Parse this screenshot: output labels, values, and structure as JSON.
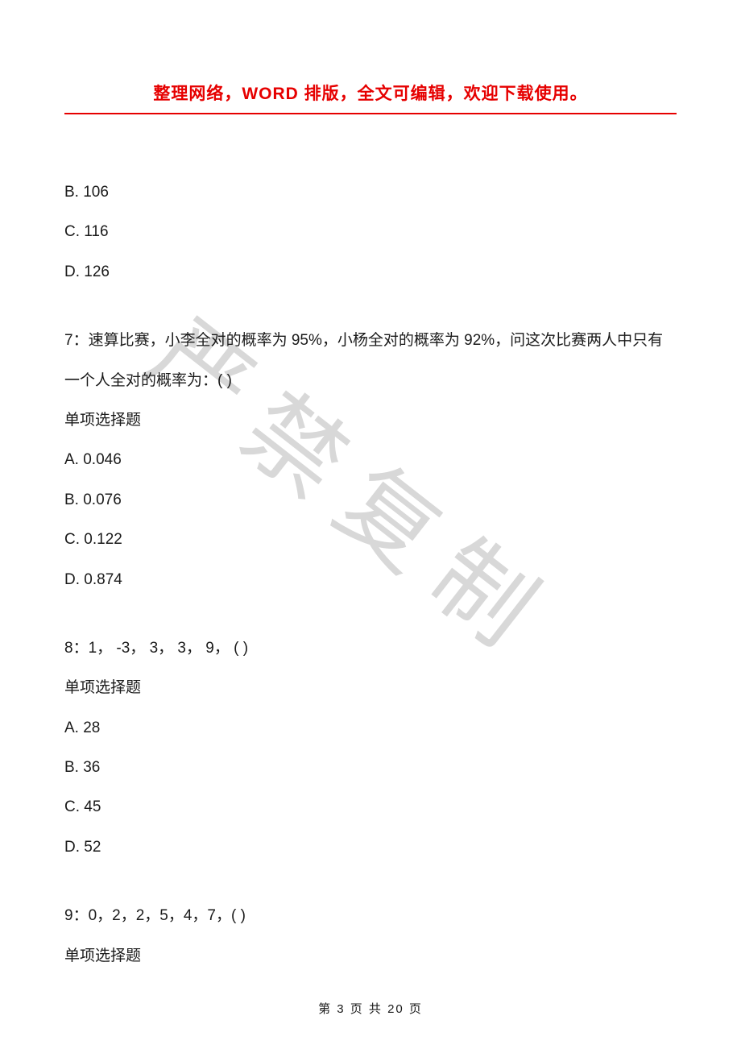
{
  "header": {
    "text": "整理网络，WORD 排版，全文可编辑，欢迎下载使用。",
    "color": "#e60000",
    "fontsize": 21,
    "underline_color": "#e60000"
  },
  "watermark": {
    "text": "严禁复制",
    "color": "#d8d8d8",
    "fontsize": 120,
    "rotation_deg": 38
  },
  "body": {
    "text_color": "#1a1a1a",
    "fontsize": 19,
    "background_color": "#ffffff",
    "partial_options": {
      "b": "B. 106",
      "c": "C. 116",
      "d": "D. 126"
    },
    "questions": [
      {
        "number": "7",
        "stem": "7：速算比赛，小李全对的概率为 95%，小杨全对的概率为 92%，问这次比赛两人中只有一个人全对的概率为：( )",
        "type_label": "单项选择题",
        "options": {
          "a": "A. 0.046",
          "b": "B. 0.076",
          "c": "C. 0.122",
          "d": "D. 0.874"
        }
      },
      {
        "number": "8",
        "stem": "8：1，  -3，  3，  3，  9，  (    )",
        "type_label": "单项选择题",
        "options": {
          "a": "A. 28",
          "b": "B. 36",
          "c": "C. 45",
          "d": "D. 52"
        }
      },
      {
        "number": "9",
        "stem": "9：0，2，2，5，4，7，(    )",
        "type_label": "单项选择题",
        "options": {}
      }
    ]
  },
  "footer": {
    "current_page": 3,
    "total_pages": 20,
    "text": "第 3 页 共 20 页",
    "fontsize": 15
  }
}
